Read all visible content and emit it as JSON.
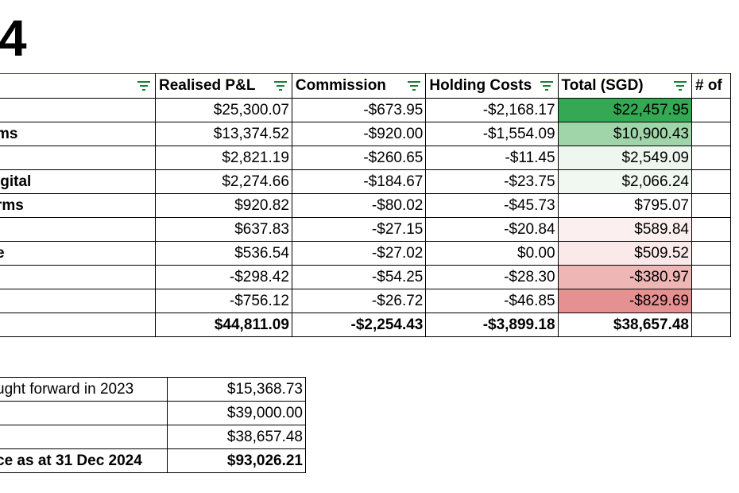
{
  "heading": "4",
  "main_table": {
    "headers": [
      "",
      "Realised P&L",
      "Commission",
      "Holding Costs",
      "Total (SGD)",
      "# of"
    ],
    "rows": [
      {
        "name": "",
        "pnl": "$25,300.07",
        "commission": "-$673.95",
        "holding": "-$2,168.17",
        "total": "$22,457.95",
        "total_color": "#34a853"
      },
      {
        "name": "ms",
        "pnl": "$13,374.52",
        "commission": "-$920.00",
        "holding": "-$1,554.09",
        "total": "$10,900.43",
        "total_color": "#9fd5a9"
      },
      {
        "name": "",
        "pnl": "$2,821.19",
        "commission": "-$260.65",
        "holding": "-$11.45",
        "total": "$2,549.09",
        "total_color": "#eef7ef"
      },
      {
        "name": "igital",
        "pnl": "$2,274.66",
        "commission": "-$184.67",
        "holding": "-$23.75",
        "total": "$2,066.24",
        "total_color": "#f1f8f2"
      },
      {
        "name": "rms",
        "pnl": "$920.82",
        "commission": "-$80.02",
        "holding": "-$45.73",
        "total": "$795.07",
        "total_color": "#ffffff"
      },
      {
        "name": "",
        "pnl": "$637.83",
        "commission": "-$27.15",
        "holding": "-$20.84",
        "total": "$589.84",
        "total_color": "#fcefef"
      },
      {
        "name": "e",
        "pnl": "$536.54",
        "commission": "-$27.02",
        "holding": "$0.00",
        "total": "$509.52",
        "total_color": "#fbe8e8"
      },
      {
        "name": "",
        "pnl": "-$298.42",
        "commission": "-$54.25",
        "holding": "-$28.30",
        "total": "-$380.97",
        "total_color": "#efb6b6"
      },
      {
        "name": "",
        "pnl": "-$756.12",
        "commission": "-$26.72",
        "holding": "-$46.85",
        "total": "-$829.69",
        "total_color": "#e69191"
      }
    ],
    "totals": {
      "name": "",
      "pnl": "$44,811.09",
      "commission": "-$2,254.43",
      "holding": "-$3,899.18",
      "total": "$38,657.48"
    }
  },
  "summary_table": {
    "rows": [
      {
        "label": "ught forward in 2023",
        "value": "$15,368.73",
        "bold": false
      },
      {
        "label": "",
        "value": "$39,000.00",
        "bold": false
      },
      {
        "label": "",
        "value": "$38,657.48",
        "bold": false
      },
      {
        "label": "ce as at 31 Dec 2024",
        "value": "$93,026.21",
        "bold": true
      }
    ]
  },
  "colors": {
    "accent_green": "#188038"
  },
  "icons": {
    "filter": "filter-icon"
  }
}
